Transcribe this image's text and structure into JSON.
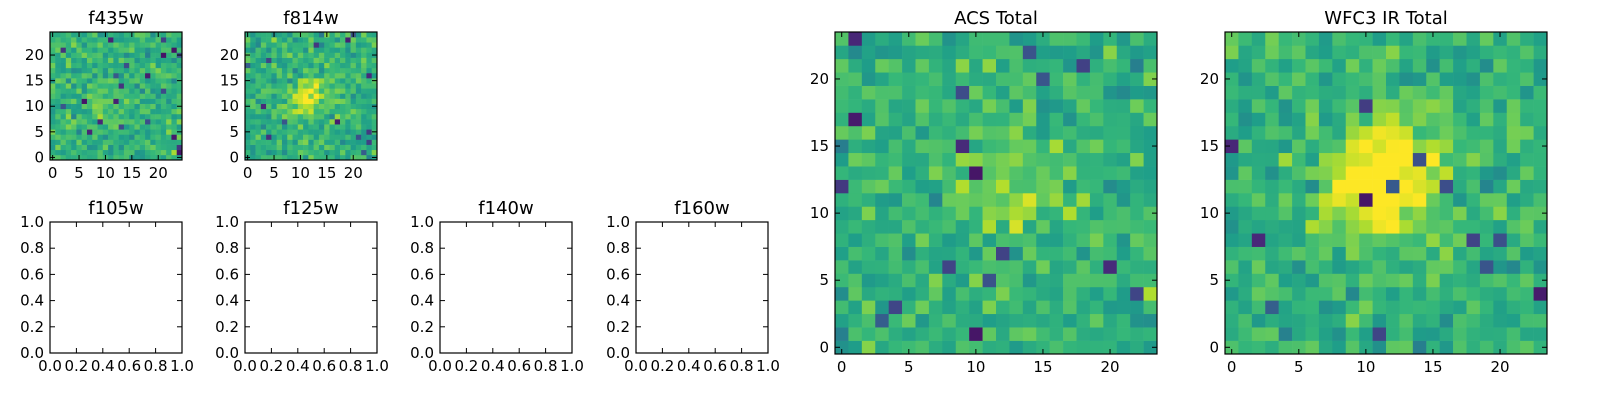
{
  "figure": {
    "background": "#ffffff",
    "colormap": "viridis"
  },
  "chart_data": [
    {
      "type": "heatmap",
      "title": "f435w",
      "size": 25,
      "xlim": [
        -0.5,
        24.5
      ],
      "ylim": [
        -0.5,
        24.5
      ],
      "xticks": [
        0,
        5,
        10,
        15,
        20
      ],
      "yticks": [
        0,
        5,
        10,
        15,
        20
      ],
      "seed": 435,
      "center": [
        10,
        10
      ],
      "peak": 0.1
    },
    {
      "type": "heatmap",
      "title": "f814w",
      "size": 25,
      "xlim": [
        -0.5,
        24.5
      ],
      "ylim": [
        -0.5,
        24.5
      ],
      "xticks": [
        0,
        5,
        10,
        15,
        20
      ],
      "yticks": [
        0,
        5,
        10,
        15,
        20
      ],
      "seed": 814,
      "center": [
        11.5,
        11.5
      ],
      "peak": 0.3
    },
    {
      "type": "heatmap",
      "title": "f105w",
      "empty": true,
      "xlim": [
        0,
        1
      ],
      "ylim": [
        0,
        1
      ],
      "xticks": [
        "0.0",
        "0.2",
        "0.4",
        "0.6",
        "0.8",
        "1.0"
      ],
      "yticks": [
        "0.0",
        "0.2",
        "0.4",
        "0.6",
        "0.8",
        "1.0"
      ]
    },
    {
      "type": "heatmap",
      "title": "f125w",
      "empty": true,
      "xlim": [
        0,
        1
      ],
      "ylim": [
        0,
        1
      ],
      "xticks": [
        "0.0",
        "0.2",
        "0.4",
        "0.6",
        "0.8",
        "1.0"
      ],
      "yticks": [
        "0.0",
        "0.2",
        "0.4",
        "0.6",
        "0.8",
        "1.0"
      ]
    },
    {
      "type": "heatmap",
      "title": "f140w",
      "empty": true,
      "xlim": [
        0,
        1
      ],
      "ylim": [
        0,
        1
      ],
      "xticks": [
        "0.0",
        "0.2",
        "0.4",
        "0.6",
        "0.8",
        "1.0"
      ],
      "yticks": [
        "0.0",
        "0.2",
        "0.4",
        "0.6",
        "0.8",
        "1.0"
      ]
    },
    {
      "type": "heatmap",
      "title": "f160w",
      "empty": true,
      "xlim": [
        0,
        1
      ],
      "ylim": [
        0,
        1
      ],
      "xticks": [
        "0.0",
        "0.2",
        "0.4",
        "0.6",
        "0.8",
        "1.0"
      ],
      "yticks": [
        "0.0",
        "0.2",
        "0.4",
        "0.6",
        "0.8",
        "1.0"
      ]
    },
    {
      "type": "heatmap",
      "title": "ACS Total",
      "size": 24,
      "xlim": [
        -0.5,
        23.5
      ],
      "ylim": [
        -0.5,
        23.5
      ],
      "xticks": [
        0,
        5,
        10,
        15,
        20
      ],
      "yticks": [
        0,
        5,
        10,
        15,
        20
      ],
      "seed": 123,
      "center": [
        12,
        12
      ],
      "peak": 0.2
    },
    {
      "type": "heatmap",
      "title": "WFC3 IR Total",
      "size": 24,
      "xlim": [
        -0.5,
        23.5
      ],
      "ylim": [
        -0.5,
        23.5
      ],
      "xticks": [
        0,
        5,
        10,
        15,
        20
      ],
      "yticks": [
        0,
        5,
        10,
        15,
        20
      ],
      "seed": 777,
      "center": [
        11.5,
        12.5
      ],
      "peak": 0.55
    }
  ]
}
